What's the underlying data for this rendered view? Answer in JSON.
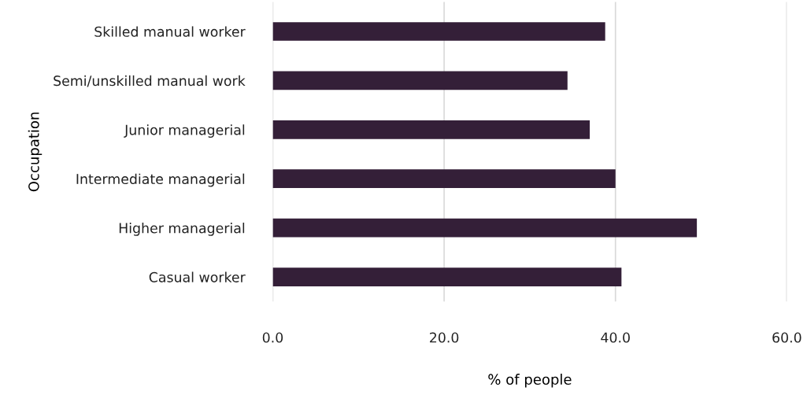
{
  "chart_data": {
    "type": "bar",
    "orientation": "horizontal",
    "xlabel": "% of people",
    "ylabel": "Occupation",
    "categories": [
      "Skilled manual worker",
      "Semi/unskilled manual work",
      "Junior managerial",
      "Intermediate managerial",
      "Higher managerial",
      "Casual worker"
    ],
    "values": [
      38.8,
      34.4,
      37.0,
      40.0,
      49.5,
      40.7
    ],
    "color": "#341f38",
    "xlim": [
      0,
      60
    ],
    "xticks": [
      {
        "value": 0,
        "label": "0.0"
      },
      {
        "value": 20,
        "label": "20.0"
      },
      {
        "value": 40,
        "label": "40.0"
      },
      {
        "value": 60,
        "label": "60.0"
      }
    ],
    "grid": "x",
    "legend": false
  }
}
